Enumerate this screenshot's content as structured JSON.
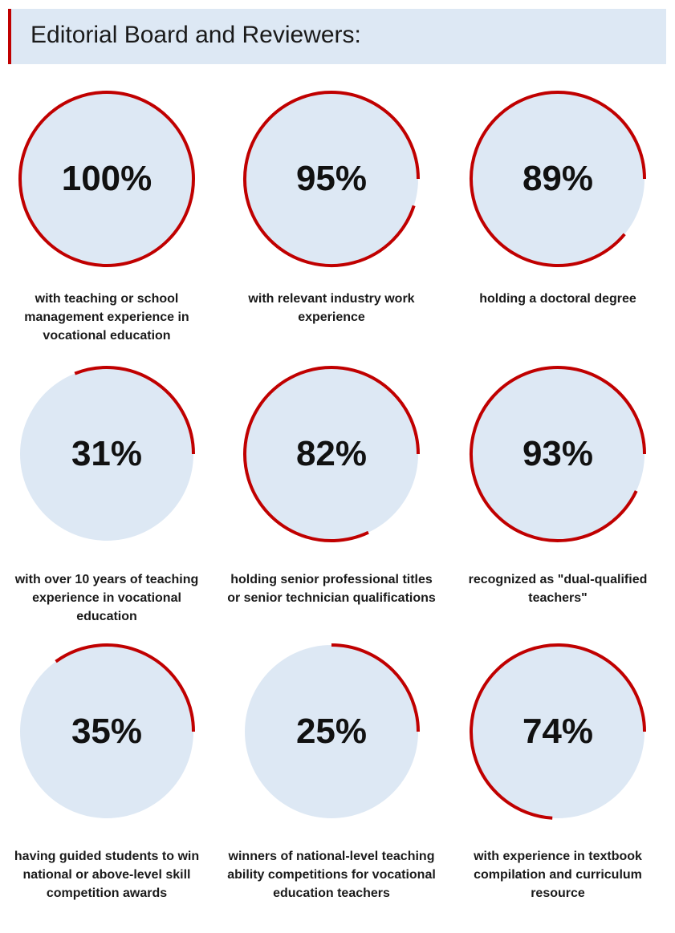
{
  "header": {
    "title": "Editorial Board and Reviewers:"
  },
  "colors": {
    "accent": "#c00000",
    "circle_fill": "#dde8f4",
    "header_fill": "#dde8f4"
  },
  "chart_data": [
    {
      "type": "pie",
      "value": 100,
      "value_label": "100%",
      "label": "with teaching or school management experience in vocational education"
    },
    {
      "type": "pie",
      "value": 95,
      "value_label": "95%",
      "label": "with relevant industry work experience"
    },
    {
      "type": "pie",
      "value": 89,
      "value_label": "89%",
      "label": "holding a doctoral degree"
    },
    {
      "type": "pie",
      "value": 31,
      "value_label": "31%",
      "label": "with over 10 years of teaching experience in vocational education"
    },
    {
      "type": "pie",
      "value": 82,
      "value_label": "82%",
      "label": "holding senior professional titles or senior technician qualifications"
    },
    {
      "type": "pie",
      "value": 93,
      "value_label": "93%",
      "label": "recognized as \"dual-qualified teachers\""
    },
    {
      "type": "pie",
      "value": 35,
      "value_label": "35%",
      "label": "having guided students to win national or above-level skill competition awards"
    },
    {
      "type": "pie",
      "value": 25,
      "value_label": "25%",
      "label": "winners of national-level teaching ability competitions for vocational education teachers"
    },
    {
      "type": "pie",
      "value": 74,
      "value_label": "74%",
      "label": "with experience in textbook compilation and curriculum resource"
    }
  ]
}
